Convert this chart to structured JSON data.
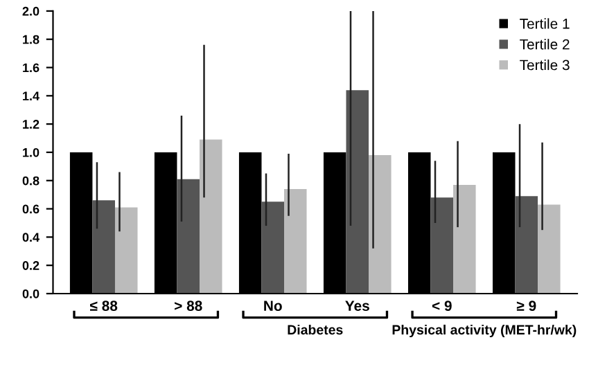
{
  "chart_data": {
    "type": "bar",
    "categories": [
      "≤ 88",
      "> 88",
      "No",
      "Yes",
      "< 9",
      "≥ 9"
    ],
    "series": [
      {
        "name": "Tertile 1",
        "color": "#000000",
        "values": [
          1.0,
          1.0,
          1.0,
          1.0,
          1.0,
          1.0
        ]
      },
      {
        "name": "Tertile 2",
        "color": "#555555",
        "values": [
          0.66,
          0.81,
          0.65,
          1.44,
          0.68,
          0.69
        ],
        "errors": [
          [
            0.46,
            0.93
          ],
          [
            0.51,
            1.26
          ],
          [
            0.48,
            0.85
          ],
          [
            0.48,
            2.0
          ],
          [
            0.5,
            0.94
          ],
          [
            0.47,
            1.2
          ]
        ]
      },
      {
        "name": "Tertile 3",
        "color": "#bbbbbb",
        "values": [
          0.61,
          1.09,
          0.74,
          0.98,
          0.77,
          0.63
        ],
        "errors": [
          [
            0.44,
            0.86
          ],
          [
            0.68,
            1.76
          ],
          [
            0.55,
            0.99
          ],
          [
            0.32,
            2.0
          ],
          [
            0.47,
            1.08
          ],
          [
            0.45,
            1.07
          ]
        ]
      }
    ],
    "ylim": [
      0,
      2.0
    ],
    "yticks": [
      {
        "value": 0,
        "label": "0.0"
      },
      {
        "value": 0.2,
        "label": "0.2"
      },
      {
        "value": 0.4,
        "label": "0.4"
      },
      {
        "value": 0.6,
        "label": "0.6"
      },
      {
        "value": 0.8,
        "label": "0.8"
      },
      {
        "value": 1.0,
        "label": "1.0"
      },
      {
        "value": 1.2,
        "label": "1.2"
      },
      {
        "value": 1.4,
        "label": "1.4"
      },
      {
        "value": 1.6,
        "label": "1.6"
      },
      {
        "value": 1.8,
        "label": "1.8"
      },
      {
        "value": 2.0,
        "label": "2.0"
      }
    ],
    "annotations": [
      "Diabetes",
      "Physical activity (MET-hr/wk)"
    ],
    "legend": "top right",
    "grid": false
  }
}
